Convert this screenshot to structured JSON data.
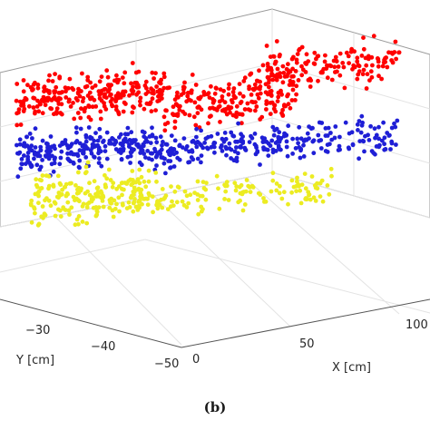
{
  "caption": "(b)",
  "chart_data": {
    "type": "scatter",
    "dimensions": 3,
    "title": "",
    "xlabel": "X [cm]",
    "ylabel": "Y [cm]",
    "zlabel": "",
    "x_ticks": [
      "0",
      "50",
      "100"
    ],
    "y_ticks": [
      "−30",
      "−40",
      "−50"
    ],
    "xlim": [
      -10,
      120
    ],
    "ylim": [
      -55,
      -20
    ],
    "grid": true,
    "legend": "none",
    "series": [
      {
        "color": "#ff0000",
        "description_clusters": [
          {
            "x": [
              -10,
              40
            ],
            "y": [
              -32,
              -26
            ],
            "z": [
              18,
              24
            ],
            "n": 260
          },
          {
            "x": [
              40,
              85
            ],
            "y": [
              -30,
              -24
            ],
            "z": [
              17,
              23
            ],
            "n": 200
          },
          {
            "x": [
              75,
              120
            ],
            "y": [
              -27,
              -20
            ],
            "z": [
              22,
              27
            ],
            "n": 150
          }
        ]
      },
      {
        "color": "#1f1fd6",
        "description_clusters": [
          {
            "x": [
              -10,
              35
            ],
            "y": [
              -33,
              -27
            ],
            "z": [
              12,
              17
            ],
            "n": 240
          },
          {
            "x": [
              35,
              80
            ],
            "y": [
              -31,
              -25
            ],
            "z": [
              12,
              16
            ],
            "n": 170
          },
          {
            "x": [
              80,
              120
            ],
            "y": [
              -27,
              -21
            ],
            "z": [
              13,
              18
            ],
            "n": 110
          }
        ]
      },
      {
        "color": "#ecec22",
        "description_clusters": [
          {
            "x": [
              -10,
              30
            ],
            "y": [
              -42,
              -32
            ],
            "z": [
              4,
              9
            ],
            "n": 200
          },
          {
            "x": [
              30,
              95
            ],
            "y": [
              -32,
              -26
            ],
            "z": [
              6,
              10
            ],
            "n": 140
          }
        ]
      }
    ]
  }
}
